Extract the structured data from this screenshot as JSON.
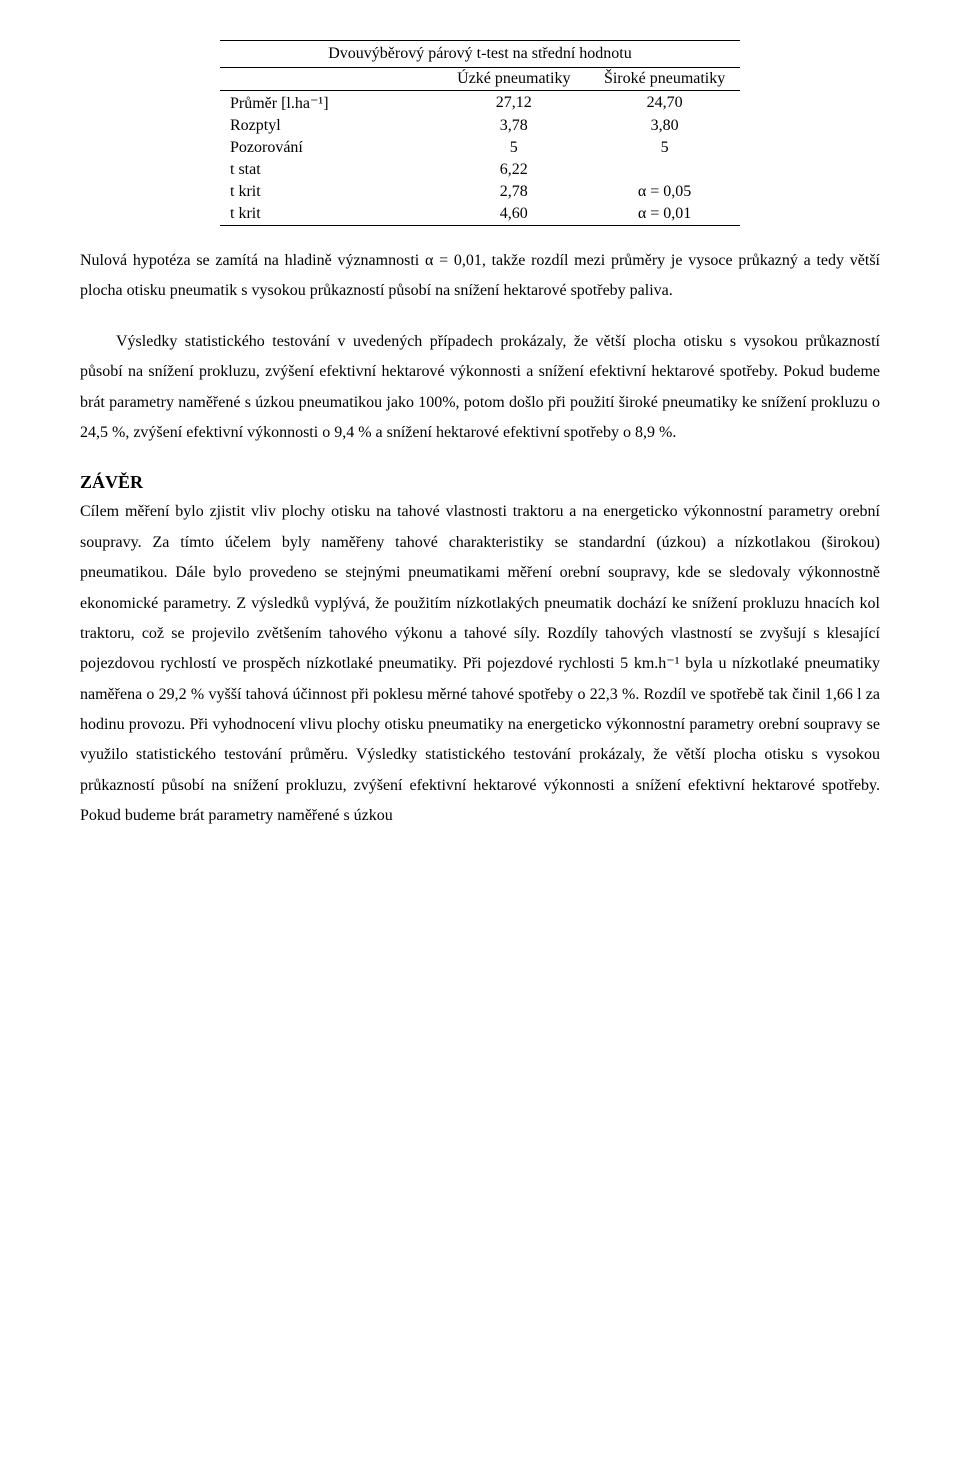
{
  "table": {
    "title": "Dvouvýběrový párový t-test na střední hodnotu",
    "header_col1": "Úzké pneumatiky",
    "header_col2": "Široké pneumatiky",
    "rows": [
      {
        "label": "Průměr [l.ha⁻¹]",
        "c1": "27,12",
        "c2": "24,70"
      },
      {
        "label": "Rozptyl",
        "c1": "3,78",
        "c2": "3,80"
      },
      {
        "label": "Pozorování",
        "c1": "5",
        "c2": "5"
      },
      {
        "label": "t stat",
        "c1": "6,22",
        "c2": ""
      },
      {
        "label": "t krit",
        "c1": "2,78",
        "c2": "α = 0,05"
      },
      {
        "label": "t krit",
        "c1": "4,60",
        "c2": "α = 0,01"
      }
    ]
  },
  "para1": "Nulová hypotéza se zamítá na hladině významnosti α = 0,01, takže rozdíl mezi průměry je vysoce průkazný a tedy větší plocha otisku pneumatik s vysokou průkazností působí na snížení hektarové spotřeby paliva.",
  "para2": "Výsledky statistického testování v uvedených případech prokázaly, že větší plocha otisku s vysokou průkazností působí na snížení prokluzu, zvýšení efektivní hektarové výkonnosti a snížení efektivní hektarové spotřeby. Pokud budeme brát parametry naměřené s úzkou pneumatikou  jako 100%, potom došlo při použití široké pneumatiky ke snížení prokluzu o 24,5 %, zvýšení efektivní výkonnosti o 9,4 % a snížení hektarové efektivní spotřeby o 8,9 %.",
  "heading": "ZÁVĚR",
  "para3": "Cílem měření bylo zjistit vliv plochy otisku na tahové vlastnosti traktoru a na energeticko výkonnostní parametry orební soupravy. Za tímto účelem byly naměřeny tahové charakteristiky se standardní (úzkou) a nízkotlakou (širokou) pneumatikou. Dále bylo provedeno se stejnými pneumatikami měření orební soupravy, kde se sledovaly výkonnostně ekonomické parametry. Z výsledků vyplývá, že použitím nízkotlakých pneumatik dochází ke snížení prokluzu hnacích kol traktoru, což se projevilo zvětšením tahového výkonu a tahové síly. Rozdíly tahových vlastností se zvyšují s klesající pojezdovou rychlostí ve prospěch nízkotlaké pneumatiky. Při pojezdové rychlosti 5 km.h⁻¹ byla u nízkotlaké pneumatiky naměřena o 29,2 % vyšší tahová účinnost při poklesu měrné tahové spotřeby o 22,3 %. Rozdíl ve spotřebě tak činil 1,66 l za hodinu provozu. Při vyhodnocení vlivu plochy otisku pneumatiky na energeticko výkonnostní parametry orební soupravy se využilo statistického testování průměru. Výsledky statistického testování prokázaly, že větší plocha otisku s vysokou průkazností působí na snížení prokluzu, zvýšení efektivní hektarové výkonnosti a snížení efektivní hektarové spotřeby. Pokud budeme brát parametry naměřené s úzkou"
}
